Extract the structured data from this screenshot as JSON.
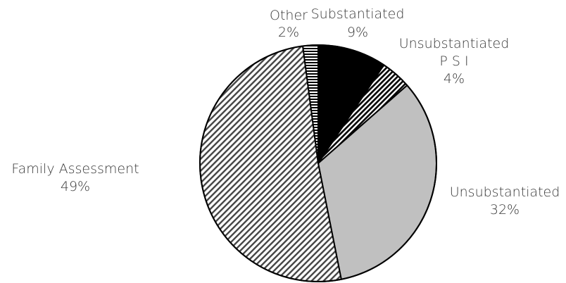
{
  "chart_data": {
    "type": "pie",
    "title": "",
    "slices": [
      {
        "name": "Substantiated",
        "value": 9,
        "label_lines": [
          "Substantiated",
          "9%"
        ],
        "fill": "solid",
        "color": "#000000"
      },
      {
        "name": "Unsubstantiated P S I",
        "value": 4,
        "label_lines": [
          "Unsubstantiated",
          "P S I",
          "4%"
        ],
        "fill": "hatch-dense-diagonal",
        "color": "#000000"
      },
      {
        "name": "Unsubstantiated",
        "value": 32,
        "label_lines": [
          "Unsubstantiated",
          "32%"
        ],
        "fill": "solid",
        "color": "#c0c0c0"
      },
      {
        "name": "Family Assessment",
        "value": 49,
        "label_lines": [
          "Family Assessment",
          "49%"
        ],
        "fill": "hatch-wide-diagonal",
        "color": "#000000"
      },
      {
        "name": "Other",
        "value": 2,
        "label_lines": [
          "Other",
          "2%"
        ],
        "fill": "hatch-horizontal",
        "color": "#000000"
      }
    ],
    "start": "12 o'clock",
    "direction": "clockwise"
  }
}
